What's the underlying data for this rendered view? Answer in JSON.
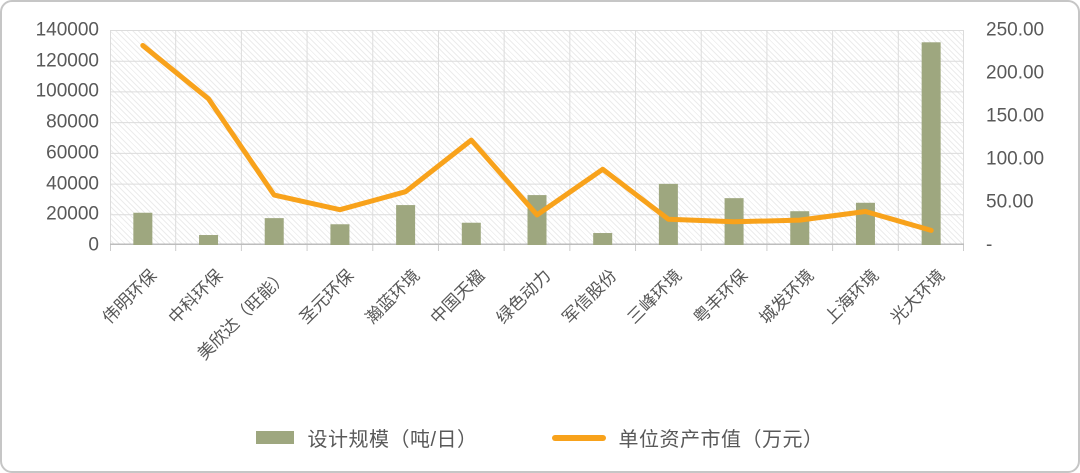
{
  "chart_data": {
    "type": "bar",
    "subtype": "bar-line combo, dual axis",
    "categories": [
      "伟明环保",
      "中科环保",
      "美欣达（旺能）",
      "圣元环保",
      "瀚蓝环境",
      "中国天楹",
      "绿色动力",
      "军信股份",
      "三峰环境",
      "粤丰环保",
      "城发环境",
      "上海环境",
      "光大环境"
    ],
    "series": [
      {
        "name": "设计规模（吨/日）",
        "type": "bar",
        "axis": "left",
        "color": "#9ea77f",
        "values": [
          21000,
          6500,
          17500,
          13500,
          26000,
          14500,
          32500,
          7800,
          39800,
          30500,
          22000,
          27500,
          132000
        ]
      },
      {
        "name": "单位资产市值（万元）",
        "type": "line",
        "axis": "right",
        "color": "#f8a21b",
        "values": [
          232,
          170,
          58,
          41,
          62,
          122,
          35,
          88,
          30,
          27,
          29,
          39,
          17
        ]
      }
    ],
    "left_axis": {
      "min": 0,
      "max": 140000,
      "step": 20000,
      "tick_labels": [
        "0",
        "20000",
        "40000",
        "60000",
        "80000",
        "100000",
        "120000",
        "140000"
      ]
    },
    "right_axis": {
      "min": 0,
      "max": 250,
      "step": 50,
      "tick_labels": [
        "-",
        "50.00",
        "100.00",
        "150.00",
        "200.00",
        "250.00"
      ]
    },
    "grid": true,
    "plot_background": "diagonal-hatch",
    "legend_position": "bottom",
    "title": "",
    "xlabel": "",
    "ylabel": ""
  },
  "legend": {
    "items": [
      {
        "label": "设计规模（吨/日）",
        "swatch": "bar"
      },
      {
        "label": "单位资产市值（万元）",
        "swatch": "line"
      }
    ]
  },
  "colors": {
    "bar": "#9ea77f",
    "line": "#f8a21b",
    "gridline": "#dcdcdc",
    "axis_line": "#bdbdbd",
    "tick": "#cccccc",
    "text": "#595959",
    "border": "#c6c6c6"
  }
}
